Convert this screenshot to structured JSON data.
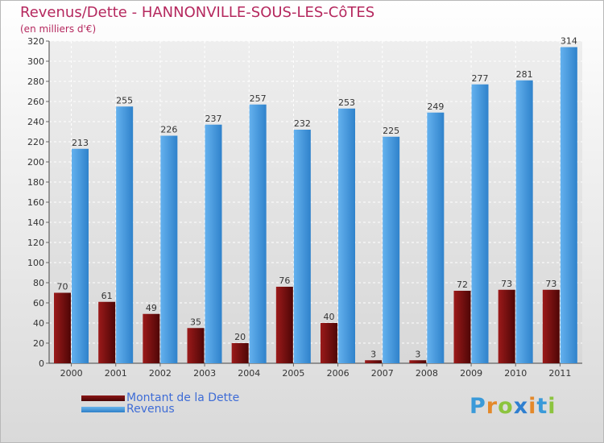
{
  "header": {
    "title": "Revenus/Dette - HANNONVILLE-SOUS-LES-CôTES",
    "subtitle": "(en milliers d'€)"
  },
  "chart_data": {
    "type": "bar",
    "title": "Revenus/Dette - HANNONVILLE-SOUS-LES-CôTES",
    "ylabel": "(en milliers d'€)",
    "xlabel": "",
    "ylim": [
      0,
      320
    ],
    "ytick_step": 20,
    "grid": true,
    "categories": [
      "2000",
      "2001",
      "2002",
      "2003",
      "2004",
      "2005",
      "2006",
      "2007",
      "2008",
      "2009",
      "2010",
      "2011"
    ],
    "series": [
      {
        "name": "Montant de la Dette",
        "color": "#7a0c10",
        "values": [
          70,
          61,
          49,
          35,
          20,
          76,
          40,
          3,
          3,
          72,
          73,
          73
        ]
      },
      {
        "name": "Revenus",
        "color": "#3f95dc",
        "values": [
          213,
          255,
          226,
          237,
          257,
          232,
          253,
          225,
          249,
          277,
          281,
          314
        ]
      }
    ]
  },
  "legend": {
    "items": [
      {
        "label": "Montant de la Dette",
        "color": "#6b0a0a"
      },
      {
        "label": "Revenus",
        "color": "#4a9ce0"
      }
    ]
  },
  "logo": {
    "letters": [
      "P",
      "r",
      "o",
      "x",
      "i",
      "t",
      "i"
    ],
    "colors": [
      "#3a9ad9",
      "#e4892a",
      "#8cc43f",
      "#2e7fd0",
      "#e4892a",
      "#3a9ad9",
      "#8cc43f"
    ]
  }
}
